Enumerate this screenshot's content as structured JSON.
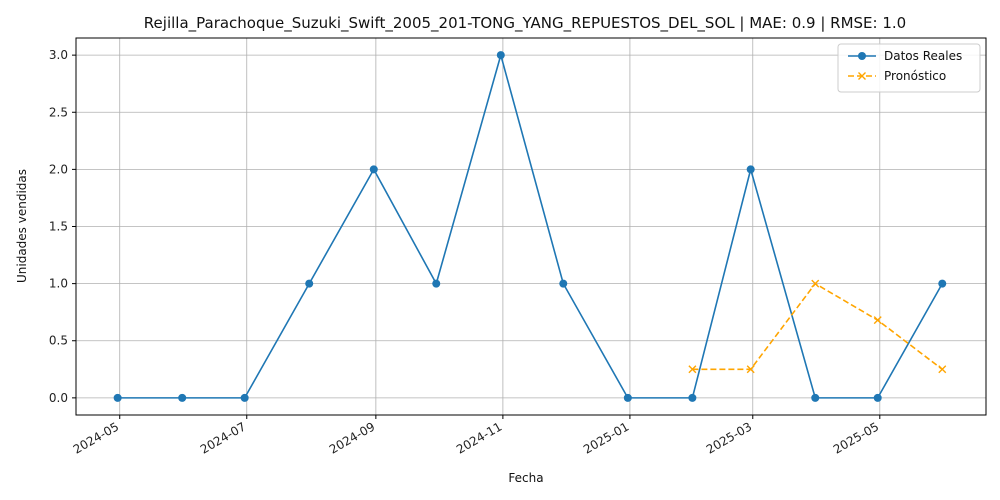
{
  "chart_data": {
    "type": "line",
    "title": "Rejilla_Parachoque_Suzuki_Swift_2005_201-TONG_YANG_REPUESTOS_DEL_SOL | MAE: 0.9 | RMSE: 1.0",
    "xlabel": "Fecha",
    "ylabel": "Unidades vendidas",
    "xlim": [
      "2024-04-10",
      "2025-06-21"
    ],
    "ylim": [
      -0.15,
      3.15
    ],
    "x_ticks": [
      "2024-05",
      "2024-07",
      "2024-09",
      "2024-11",
      "2025-01",
      "2025-03",
      "2025-05"
    ],
    "y_ticks": [
      "0.0",
      "0.5",
      "1.0",
      "1.5",
      "2.0",
      "2.5",
      "3.0"
    ],
    "grid": true,
    "legend_position": "top-right",
    "series": [
      {
        "name": "Datos Reales",
        "color": "#1f77b4",
        "line_style": "solid",
        "marker": "circle",
        "x": [
          "2024-04-30",
          "2024-05-31",
          "2024-06-30",
          "2024-07-31",
          "2024-08-31",
          "2024-09-30",
          "2024-10-31",
          "2024-11-30",
          "2024-12-31",
          "2025-01-31",
          "2025-02-28",
          "2025-03-31",
          "2025-04-30",
          "2025-05-31"
        ],
        "y": [
          0,
          0,
          0,
          1,
          2,
          1,
          3,
          1,
          0,
          0,
          2,
          0,
          0,
          1
        ]
      },
      {
        "name": "Pronóstico",
        "color": "#ffa500",
        "line_style": "dashed",
        "marker": "x",
        "x": [
          "2025-01-31",
          "2025-02-28",
          "2025-03-31",
          "2025-04-30",
          "2025-05-31"
        ],
        "y": [
          0.25,
          0.25,
          1.0,
          0.68,
          0.25
        ]
      }
    ]
  }
}
